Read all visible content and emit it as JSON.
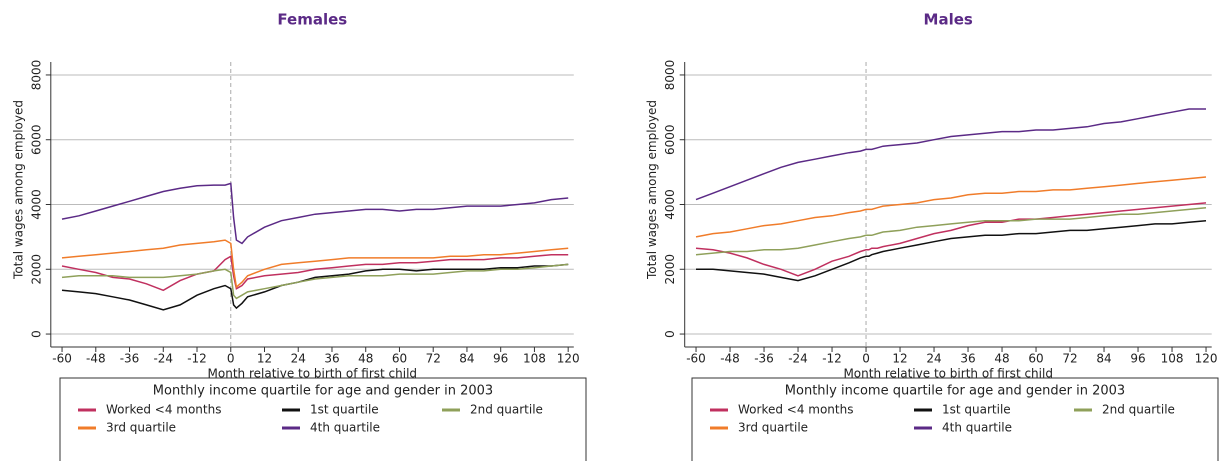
{
  "chart_data": [
    {
      "type": "line",
      "title": "Females",
      "xlabel": "Month relative to birth of first child",
      "ylabel": "Total wages among employed",
      "legend_title": "Monthly income quartile for age and gender in 2003",
      "x": [
        -60,
        -54,
        -48,
        -42,
        -36,
        -30,
        -24,
        -18,
        -12,
        -6,
        -2,
        0,
        1,
        2,
        4,
        6,
        12,
        18,
        24,
        30,
        36,
        42,
        48,
        54,
        60,
        66,
        72,
        78,
        84,
        90,
        96,
        102,
        108,
        114,
        120
      ],
      "series": [
        {
          "name": "Worked <4 months",
          "color": "#c0305f",
          "values": [
            2100,
            2000,
            1900,
            1750,
            1700,
            1550,
            1350,
            1650,
            1850,
            1950,
            2300,
            2400,
            1800,
            1400,
            1500,
            1700,
            1800,
            1850,
            1900,
            2000,
            2050,
            2100,
            2150,
            2150,
            2200,
            2200,
            2250,
            2300,
            2300,
            2300,
            2350,
            2350,
            2400,
            2450,
            2450
          ]
        },
        {
          "name": "1st quartile",
          "color": "#111111",
          "values": [
            1350,
            1300,
            1250,
            1150,
            1050,
            900,
            750,
            900,
            1200,
            1400,
            1500,
            1400,
            900,
            800,
            950,
            1150,
            1300,
            1500,
            1600,
            1750,
            1800,
            1850,
            1950,
            2000,
            2000,
            1950,
            2000,
            2000,
            2000,
            2000,
            2050,
            2050,
            2100,
            2100,
            2150
          ]
        },
        {
          "name": "2nd quartile",
          "color": "#8fa05a",
          "values": [
            1750,
            1800,
            1800,
            1800,
            1750,
            1750,
            1750,
            1800,
            1850,
            1950,
            2000,
            1900,
            1200,
            1100,
            1200,
            1300,
            1400,
            1500,
            1600,
            1700,
            1750,
            1800,
            1800,
            1800,
            1850,
            1850,
            1850,
            1900,
            1950,
            1950,
            2000,
            2000,
            2050,
            2100,
            2150
          ]
        },
        {
          "name": "3rd quartile",
          "color": "#f07c2a",
          "values": [
            2350,
            2400,
            2450,
            2500,
            2550,
            2600,
            2650,
            2750,
            2800,
            2850,
            2900,
            2800,
            2000,
            1450,
            1600,
            1800,
            2000,
            2150,
            2200,
            2250,
            2300,
            2350,
            2350,
            2350,
            2350,
            2350,
            2350,
            2400,
            2400,
            2450,
            2450,
            2500,
            2550,
            2600,
            2650
          ]
        },
        {
          "name": "4th quartile",
          "color": "#5b2a86",
          "values": [
            3550,
            3650,
            3800,
            3950,
            4100,
            4250,
            4400,
            4500,
            4580,
            4600,
            4600,
            4650,
            3600,
            2900,
            2800,
            3000,
            3300,
            3500,
            3600,
            3700,
            3750,
            3800,
            3850,
            3850,
            3800,
            3850,
            3850,
            3900,
            3950,
            3950,
            3950,
            4000,
            4050,
            4150,
            4200
          ]
        }
      ],
      "xlim": [
        -64,
        122
      ],
      "xticks": [
        -60,
        -48,
        -36,
        -24,
        -12,
        0,
        12,
        24,
        36,
        48,
        60,
        72,
        84,
        96,
        108,
        120
      ],
      "ylim": [
        -400,
        8400
      ],
      "yticks": [
        0,
        2000,
        4000,
        6000,
        8000
      ],
      "grid": true,
      "vline": 0
    },
    {
      "type": "line",
      "title": "Males",
      "xlabel": "Month relative to birth of first child",
      "ylabel": "Total wages among employed",
      "legend_title": "Monthly income quartile for age and gender in 2003",
      "x": [
        -60,
        -54,
        -48,
        -42,
        -36,
        -30,
        -24,
        -18,
        -12,
        -6,
        -2,
        0,
        1,
        2,
        4,
        6,
        12,
        18,
        24,
        30,
        36,
        42,
        48,
        54,
        60,
        66,
        72,
        78,
        84,
        90,
        96,
        102,
        108,
        114,
        120
      ],
      "series": [
        {
          "name": "Worked <4 months",
          "color": "#c0305f",
          "values": [
            2650,
            2600,
            2500,
            2350,
            2150,
            2000,
            1800,
            2000,
            2250,
            2400,
            2550,
            2600,
            2600,
            2650,
            2650,
            2700,
            2800,
            2950,
            3100,
            3200,
            3350,
            3450,
            3450,
            3550,
            3550,
            3600,
            3650,
            3700,
            3750,
            3800,
            3850,
            3900,
            3950,
            4000,
            4050
          ]
        },
        {
          "name": "1st quartile",
          "color": "#111111",
          "values": [
            2000,
            2000,
            1950,
            1900,
            1850,
            1750,
            1650,
            1800,
            2000,
            2200,
            2350,
            2400,
            2400,
            2450,
            2500,
            2550,
            2650,
            2750,
            2850,
            2950,
            3000,
            3050,
            3050,
            3100,
            3100,
            3150,
            3200,
            3200,
            3250,
            3300,
            3350,
            3400,
            3400,
            3450,
            3500
          ]
        },
        {
          "name": "2nd quartile",
          "color": "#8fa05a",
          "values": [
            2450,
            2500,
            2550,
            2550,
            2600,
            2600,
            2650,
            2750,
            2850,
            2950,
            3000,
            3050,
            3050,
            3050,
            3100,
            3150,
            3200,
            3300,
            3350,
            3400,
            3450,
            3500,
            3500,
            3500,
            3550,
            3550,
            3550,
            3600,
            3650,
            3700,
            3700,
            3750,
            3800,
            3850,
            3900
          ]
        },
        {
          "name": "3rd quartile",
          "color": "#f07c2a",
          "values": [
            3000,
            3100,
            3150,
            3250,
            3350,
            3400,
            3500,
            3600,
            3650,
            3750,
            3800,
            3850,
            3850,
            3850,
            3900,
            3950,
            4000,
            4050,
            4150,
            4200,
            4300,
            4350,
            4350,
            4400,
            4400,
            4450,
            4450,
            4500,
            4550,
            4600,
            4650,
            4700,
            4750,
            4800,
            4850
          ]
        },
        {
          "name": "4th quartile",
          "color": "#5b2a86",
          "values": [
            4150,
            4350,
            4550,
            4750,
            4950,
            5150,
            5300,
            5400,
            5500,
            5600,
            5650,
            5700,
            5700,
            5700,
            5750,
            5800,
            5850,
            5900,
            6000,
            6100,
            6150,
            6200,
            6250,
            6250,
            6300,
            6300,
            6350,
            6400,
            6500,
            6550,
            6650,
            6750,
            6850,
            6950,
            6950
          ]
        }
      ],
      "xlim": [
        -64,
        122
      ],
      "xticks": [
        -60,
        -48,
        -36,
        -24,
        -12,
        0,
        12,
        24,
        36,
        48,
        60,
        72,
        84,
        96,
        108,
        120
      ],
      "ylim": [
        -400,
        8400
      ],
      "yticks": [
        0,
        2000,
        4000,
        6000,
        8000
      ],
      "grid": true,
      "vline": 0
    }
  ]
}
